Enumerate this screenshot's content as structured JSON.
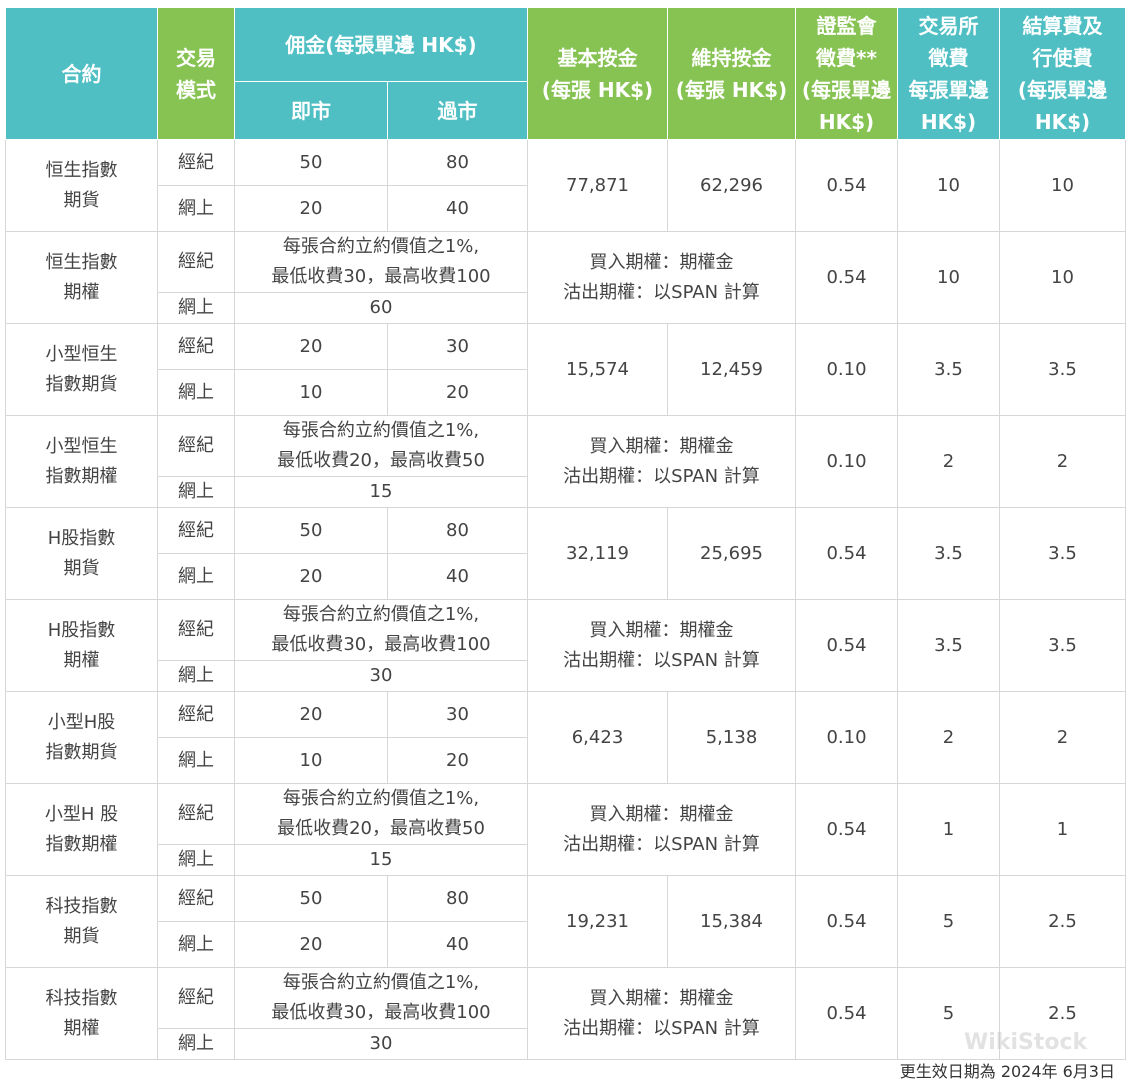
{
  "header": {
    "contract": "合約",
    "mode": [
      "交易",
      "模式"
    ],
    "commission": "佣金(每張單邊 HK$)",
    "intraday": "即市",
    "overnight": "過市",
    "initial_margin": [
      "基本按金",
      "(每張 HK$)"
    ],
    "maint_margin": [
      "維持按金",
      "(每張 HK$)"
    ],
    "sfc_levy": [
      "證監會",
      "徵費**",
      "(每張單邊",
      "HK$)"
    ],
    "exchange_fee": [
      "交易所",
      "徵費",
      "每張單邊",
      "HK$)"
    ],
    "clearing_fee": [
      "結算費及",
      "行使費",
      "(每張單邊",
      "HK$)"
    ]
  },
  "mode_labels": {
    "broker": "經紀",
    "online": "網上"
  },
  "rows": [
    {
      "contract": [
        "恒生指數",
        "期貨"
      ],
      "broker_intraday": "50",
      "broker_overnight": "80",
      "online_intraday": "20",
      "online_overnight": "40",
      "initial_margin": "77,871",
      "maint_margin": "62,296",
      "sfc": "0.54",
      "exchange": "10",
      "clearing": "10"
    },
    {
      "contract": [
        "恒生指數",
        "期權"
      ],
      "broker_commission": [
        "每張合約立約價值之1%,",
        "最低收費30，最高收費100"
      ],
      "online_commission": "60",
      "margin": [
        "買入期權：期權金",
        "沽出期權：以SPAN 計算"
      ],
      "sfc": "0.54",
      "exchange": "10",
      "clearing": "10"
    },
    {
      "contract": [
        "小型恒生",
        "指數期貨"
      ],
      "broker_intraday": "20",
      "broker_overnight": "30",
      "online_intraday": "10",
      "online_overnight": "20",
      "initial_margin": "15,574",
      "maint_margin": "12,459",
      "sfc": "0.10",
      "exchange": "3.5",
      "clearing": "3.5"
    },
    {
      "contract": [
        "小型恒生",
        "指數期權"
      ],
      "broker_commission": [
        "每張合約立約價值之1%,",
        "最低收費20，最高收費50"
      ],
      "online_commission": "15",
      "margin": [
        "買入期權：期權金",
        "沽出期權：以SPAN 計算"
      ],
      "sfc": "0.10",
      "exchange": "2",
      "clearing": "2"
    },
    {
      "contract": [
        "H股指數",
        "期貨"
      ],
      "broker_intraday": "50",
      "broker_overnight": "80",
      "online_intraday": "20",
      "online_overnight": "40",
      "initial_margin": "32,119",
      "maint_margin": "25,695",
      "sfc": "0.54",
      "exchange": "3.5",
      "clearing": "3.5"
    },
    {
      "contract": [
        "H股指數",
        "期權"
      ],
      "broker_commission": [
        "每張合約立約價值之1%,",
        "最低收費30，最高收費100"
      ],
      "online_commission": "30",
      "margin": [
        "買入期權：期權金",
        "沽出期權：以SPAN 計算"
      ],
      "sfc": "0.54",
      "exchange": "3.5",
      "clearing": "3.5"
    },
    {
      "contract": [
        "小型H股",
        "指數期貨"
      ],
      "broker_intraday": "20",
      "broker_overnight": "30",
      "online_intraday": "10",
      "online_overnight": "20",
      "initial_margin": "6,423",
      "maint_margin": "5,138",
      "sfc": "0.10",
      "exchange": "2",
      "clearing": "2"
    },
    {
      "contract": [
        "小型H 股",
        "指數期權"
      ],
      "broker_commission": [
        "每張合約立約價值之1%,",
        "最低收費20，最高收費50"
      ],
      "online_commission": "15",
      "margin": [
        "買入期權：期權金",
        "沽出期權：以SPAN 計算"
      ],
      "sfc": "0.54",
      "exchange": "1",
      "clearing": "1"
    },
    {
      "contract": [
        "科技指數",
        "期貨"
      ],
      "broker_intraday": "50",
      "broker_overnight": "80",
      "online_intraday": "20",
      "online_overnight": "40",
      "initial_margin": "19,231",
      "maint_margin": "15,384",
      "sfc": "0.54",
      "exchange": "5",
      "clearing": "2.5"
    },
    {
      "contract": [
        "科技指數",
        "期權"
      ],
      "broker_commission": [
        "每張合約立約價值之1%,",
        "最低收費30，最高收費100"
      ],
      "online_commission": "30",
      "margin": [
        "買入期權：期權金",
        "沽出期權：以SPAN 計算"
      ],
      "sfc": "0.54",
      "exchange": "5",
      "clearing": "2.5"
    }
  ],
  "footer": "更生效日期為 2024年 6月3日",
  "watermark": "WikiStock",
  "colors": {
    "header_teal": "#4fbfc4",
    "header_green": "#86c352",
    "border": "#d7d7d7"
  }
}
